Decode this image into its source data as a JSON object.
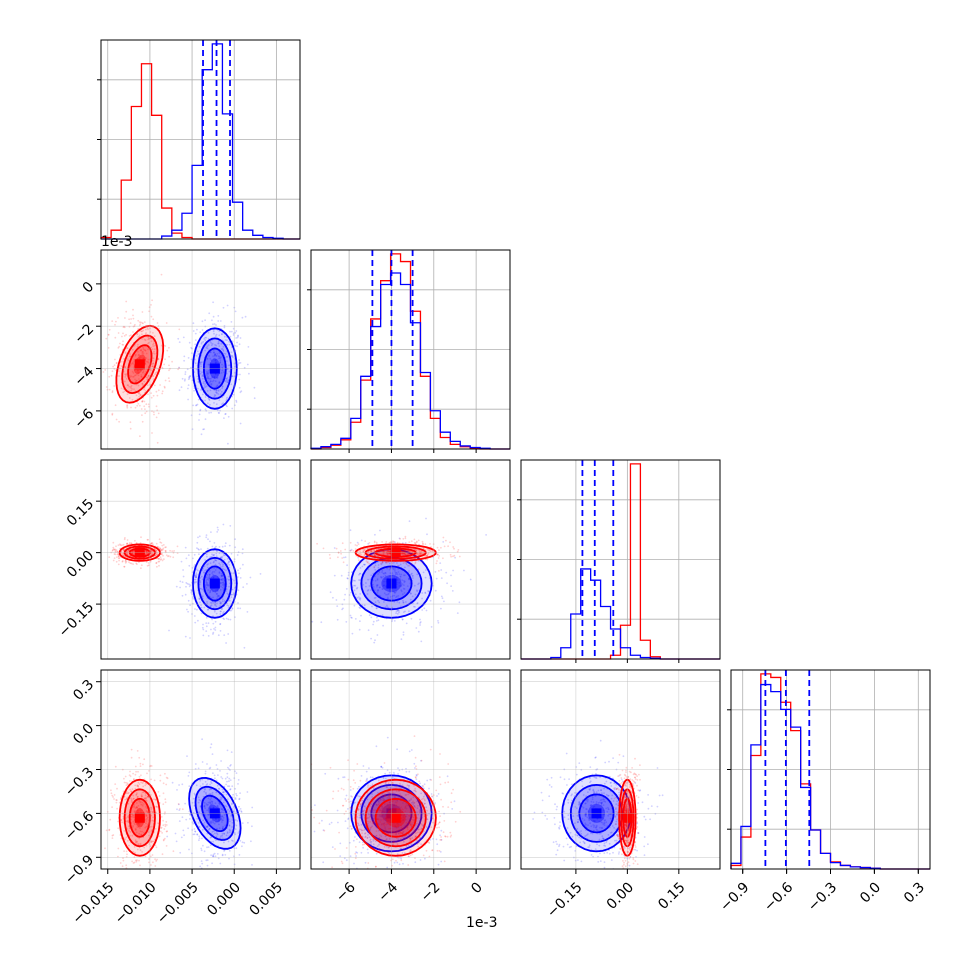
{
  "colors": {
    "series_a": "#ff0000",
    "series_b": "#0000ff",
    "grid": "#b0b0b0",
    "axes": "#000000"
  },
  "chart_data": {
    "type": "corner",
    "grid": true,
    "parameters": [
      {
        "offset_label": "1e-3",
        "ticks": [
          -0.015,
          -0.01,
          -0.005,
          0.0,
          0.005
        ],
        "tick_labels": [
          "−0.015",
          "−0.010",
          "−0.005",
          "0.000",
          "0.005"
        ],
        "range": [
          -0.0158,
          0.0078
        ]
      },
      {
        "offset_label": "1e-3",
        "ticks": [
          -6,
          -4,
          -2,
          0
        ],
        "tick_labels": [
          "−6",
          "−4",
          "−2",
          "0"
        ],
        "range": [
          -7.8,
          1.6
        ]
      },
      {
        "offset_label": "",
        "ticks": [
          -0.15,
          0.0,
          0.15
        ],
        "tick_labels": [
          "−0.15",
          "0.00",
          "0.15"
        ],
        "range": [
          -0.31,
          0.27
        ]
      },
      {
        "offset_label": "",
        "ticks": [
          -0.9,
          -0.6,
          -0.3,
          0.0,
          0.3
        ],
        "tick_labels": [
          "−0.9",
          "−0.6",
          "−0.3",
          "0.0",
          "0.3"
        ],
        "range": [
          -0.98,
          0.38
        ]
      }
    ],
    "series": [
      {
        "color": "#ff0000",
        "mean": [
          -0.0112,
          -3.8,
          0.0,
          -0.63
        ],
        "std": [
          0.0012,
          0.95,
          0.012,
          0.13
        ],
        "quantiles": null
      },
      {
        "color": "#0000ff",
        "mean": [
          -0.0023,
          -4.0,
          -0.09,
          -0.6
        ],
        "std": [
          0.0013,
          0.95,
          0.05,
          0.13
        ],
        "quantiles": [
          [
            -0.0037,
            -0.0021,
            -0.0005
          ],
          [
            -4.9,
            -4.0,
            -3.0
          ],
          [
            -0.131,
            -0.095,
            -0.041
          ],
          [
            -0.745,
            -0.605,
            -0.445
          ]
        ]
      }
    ],
    "histograms": [
      {
        "bin_edges": [
          -0.0158,
          -0.0146,
          -0.0134,
          -0.0122,
          -0.011,
          -0.0098,
          -0.0086,
          -0.0074,
          -0.0062,
          -0.005,
          -0.0038,
          -0.0026,
          -0.0014,
          -0.0002,
          0.001,
          0.0022,
          0.0034,
          0.0046,
          0.0058,
          0.007,
          0.0078
        ],
        "red": [
          2,
          12,
          80,
          180,
          238,
          168,
          42,
          8,
          2,
          0,
          0,
          0,
          0,
          0,
          0,
          0,
          0,
          0,
          0,
          0
        ],
        "blue": [
          0,
          0,
          0,
          0,
          0,
          0,
          4,
          12,
          35,
          100,
          230,
          265,
          170,
          50,
          12,
          5,
          2,
          1,
          0,
          0
        ]
      },
      {
        "bin_edges": [
          -7.8,
          -7.33,
          -6.86,
          -6.39,
          -5.92,
          -5.45,
          -4.98,
          -4.51,
          -4.04,
          -3.57,
          -3.1,
          -2.63,
          -2.16,
          -1.69,
          -1.22,
          -0.75,
          -0.28,
          0.19,
          0.66,
          1.13,
          1.6
        ],
        "red": [
          0,
          2,
          5,
          12,
          35,
          90,
          170,
          220,
          255,
          245,
          180,
          95,
          40,
          15,
          6,
          3,
          1,
          0,
          0,
          0
        ],
        "blue": [
          1,
          3,
          6,
          14,
          40,
          95,
          160,
          215,
          230,
          215,
          165,
          100,
          50,
          22,
          10,
          4,
          2,
          1,
          0,
          0
        ]
      },
      {
        "bin_edges": [
          -0.31,
          -0.281,
          -0.252,
          -0.223,
          -0.194,
          -0.165,
          -0.136,
          -0.107,
          -0.078,
          -0.049,
          -0.02,
          0.009,
          0.038,
          0.067,
          0.096,
          0.125,
          0.154,
          0.183,
          0.212,
          0.241,
          0.27
        ],
        "red": [
          0,
          0,
          0,
          0,
          0,
          0,
          0,
          0,
          0,
          5,
          45,
          260,
          25,
          3,
          0,
          0,
          0,
          0,
          0,
          0
        ],
        "blue": [
          0,
          0,
          0,
          2,
          15,
          60,
          120,
          105,
          70,
          40,
          15,
          5,
          2,
          1,
          0,
          0,
          0,
          0,
          0,
          0
        ]
      },
      {
        "bin_edges": [
          -0.98,
          -0.912,
          -0.844,
          -0.776,
          -0.708,
          -0.64,
          -0.572,
          -0.504,
          -0.436,
          -0.368,
          -0.3,
          -0.232,
          -0.164,
          -0.096,
          -0.028,
          0.04,
          0.108,
          0.176,
          0.244,
          0.312,
          0.38
        ],
        "red": [
          5,
          45,
          160,
          275,
          270,
          235,
          195,
          120,
          55,
          22,
          10,
          5,
          3,
          2,
          1,
          0,
          0,
          0,
          0,
          0
        ],
        "blue": [
          8,
          60,
          175,
          260,
          250,
          225,
          200,
          115,
          55,
          22,
          9,
          5,
          3,
          2,
          1,
          0,
          0,
          0,
          0,
          0
        ]
      }
    ]
  }
}
